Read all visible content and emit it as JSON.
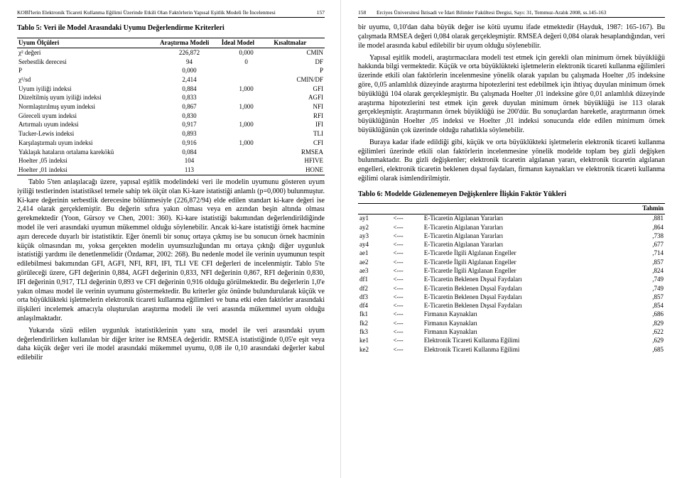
{
  "left": {
    "hdr_title": "KOBİ'lerin Elektronik Ticareti Kullanma Eğilimi Üzerinde Etkili Olan Faktörlerin Yapısal Eşitlik Modeli İle İncelenmesi",
    "hdr_num": "157",
    "table5_title": "Tablo 5: Veri ile Model Arasındaki Uyumu Değerlendirme Kriterleri",
    "t5_head": [
      "Uyum Ölçüleri",
      "Araştırma Modeli",
      "İdeal Model",
      "Kısaltmalar"
    ],
    "t5_rows": [
      [
        "χ² değeri",
        "226,872",
        "0,000",
        "CMIN"
      ],
      [
        "Serbestlik derecesi",
        "94",
        "0",
        "DF"
      ],
      [
        "P",
        "0,000",
        "",
        "P"
      ],
      [
        "χ²/sd",
        "2,414",
        "",
        "CMIN/DF"
      ],
      [
        "Uyum iyiliği indeksi",
        "0,884",
        "1,000",
        "GFI"
      ],
      [
        "Düzeltilmiş uyum iyiliği indeksi",
        "0,833",
        "",
        "AGFI"
      ],
      [
        "Normlaştırılmış uyum indeksi",
        "0,867",
        "1,000",
        "NFI"
      ],
      [
        "Göreceli uyum indeksi",
        "0,830",
        "",
        "RFI"
      ],
      [
        "Artırmalı uyum indeksi",
        "0,917",
        "1,000",
        "IFI"
      ],
      [
        "Tucker-Lewis indeksi",
        "0,893",
        "",
        "TLI"
      ],
      [
        "Karşılaştırmalı uyum indeksi",
        "0,916",
        "1,000",
        "CFI"
      ],
      [
        "Yaklaşık hataların ortalama karekökü",
        "0,084",
        "",
        "RMSEA"
      ],
      [
        "Hoelter ,05 indeksi",
        "104",
        "",
        "HFIVE"
      ],
      [
        "Hoelter ,01 indeksi",
        "113",
        "",
        "HONE"
      ]
    ],
    "p1": "Tablo 5'ten anlaşılacağı üzere, yapısal eşitlik modelindeki veri ile modelin uyumunu gösteren uyum iyiliği testlerinden istatistiksel temele sahip tek ölçüt olan Ki-kare istatistiği anlamlı (p=0,000) bulunmuştur. Ki-kare değerinin serbestlik derecesine bölünmesiyle (226,872/94) elde edilen standart ki-kare değeri ise 2,414 olarak gerçeklemiştir. Bu değerin sıfıra yakın olması veya en azından beşin altında olması gerekmektedir (Yoon, Gürsoy ve Chen, 2001: 360). Ki-kare istatistiği bakımından değerlendirildiğinde model ile veri arasındaki uyumun mükemmel olduğu söylenebilir. Ancak ki-kare istatistiği örnek hacmine aşırı derecede duyarlı bir istatistiktir. Eğer önemli bir sonuç ortaya çıkmış ise bu sonucun örnek hacminin küçük olmasından mı, yoksa gerçekten modelin uyumsuzluğundan mı ortaya çıktığı diğer uygunluk istatistiği yardımı ile denetlenmelidir (Özdamar, 2002: 268). Bu nedenle model ile verinin uyumunun tespit edilebilmesi bakımından GFI, AGFI, NFI, RFI, IFI, TLI VE CFI değerleri de incelenmiştir. Tablo 5'te görüleceği üzere, GFI değerinin 0,884, AGFI değerinin 0,833, NFI değerinin 0,867, RFI değerinin 0,830, IFI değerinin 0,917, TLI değerinin 0,893 ve CFI değerinin 0,916 olduğu görülmektedir. Bu değerlerin 1,0'e yakın olması model ile verinin uyumunu göstermektedir. Bu kriterler göz önünde bulundurularak küçük ve orta büyüklükteki işletmelerin elektronik ticareti kullanma eğilimleri ve buna etki eden faktörler arasındaki ilişkileri incelemek amacıyla oluşturulan araştırma modeli ile veri arasında mükemmel uyum olduğu anlaşılmaktadır.",
    "p2": "Yukarıda sözü edilen uygunluk istatistiklerinin yanı sıra, model ile veri arasındaki uyum değerlendirilirken kullanılan bir diğer kriter ise RMSEA değeridir. RMSEA istatistiğinde 0,05'e eşit veya daha küçük değer veri ile model arasındaki mükemmel uyumu, 0,08 ile 0,10 arasındaki değerler kabul edilebilir"
  },
  "right": {
    "hdr_num": "158",
    "hdr_title": "Erciyes Üniversitesi İktisadi ve İdari Bilimler Fakültesi Dergisi, Sayı: 31, Temmuz-Aralık 2008, ss.145-163",
    "p1": "bir uyumu, 0,10'dan daha büyük değer ise kötü uyumu ifade etmektedir (Hayduk, 1987: 165-167). Bu çalışmada RMSEA değeri 0,084 olarak gerçekleşmiştir. RMSEA değeri 0,084 olarak hesaplandığından, veri ile model arasında kabul edilebilir bir uyum olduğu söylenebilir.",
    "p2": "Yapısal eşitlik modeli, araştırmacılara modeli test etmek için gerekli olan minimum örnek büyüklüğü hakkında bilgi vermektedir. Küçük ve orta büyüklükteki işletmelerin elektronik ticareti kullanma eğilimleri üzerinde etkili olan faktörlerin incelenmesine yönelik olarak yapılan bu çalışmada Hoelter ,05 indeksine göre, 0,05 anlamlılık düzeyinde araştırma hipotezlerini test edebilmek için ihtiyaç duyulan minimum örnek büyüklüğü 104 olarak gerçekleşmiştir. Bu çalışmada Hoelter ,01 indeksine göre 0,01 anlamlılık düzeyinde araştırma hipotezlerini test etmek için gerek duyulan minimum örnek büyüklüğü ise 113 olarak gerçekleşmiştir. Araştırmanın örnek büyüklüğü ise 200'dür. Bu sonuçlardan hareketle, araştırmanın örnek büyüklüğünün Hoelter ,05 indeksi ve Hoelter ,01 indeksi sonucunda elde edilen minimum örnek büyüklüğünün çok üzerinde olduğu rahatlıkla söylenebilir.",
    "p3": "Buraya kadar ifade edildiği gibi, küçük ve orta büyüklükteki işletmelerin elektronik ticareti kullanma eğilimleri üzerinde etkili olan faktörlerin incelenmesine yönelik modelde toplam beş gizli değişken bulunmaktadır. Bu gizli değişkenler; elektronik ticaretin algılanan yararı, elektronik ticaretin algılanan engelleri, elektronik ticaretin beklenen dışsal faydaları, firmanın kaynakları ve elektronik ticareti kullanma eğilimi olarak isimlendirilmiştir.",
    "table6_title": "Tablo 6: Modelde Gözlenemeyen Değişkenlere İlişkin Faktör Yükleri",
    "t6_head": [
      "",
      "",
      "",
      "Tahmin"
    ],
    "t6_rows": [
      [
        "ay1",
        "<---",
        "E-Ticaretin Algılanan Yararları",
        ",881"
      ],
      [
        "ay2",
        "<---",
        "E-Ticaretin Algılanan Yararları",
        ",864"
      ],
      [
        "ay3",
        "<---",
        "E-Ticaretin Algılanan Yararları",
        ",738"
      ],
      [
        "ay4",
        "<---",
        "E-Ticaretin Algılanan Yararları",
        ",677"
      ],
      [
        "ae1",
        "<---",
        "E-Ticaretle İlgili Algılanan Engeller",
        ",714"
      ],
      [
        "ae2",
        "<---",
        "E-Ticaretle İlgili Algılanan Engeller",
        ",857"
      ],
      [
        "ae3",
        "<---",
        "E-Ticaretle İlgili Algılanan Engeller",
        ",824"
      ],
      [
        "df1",
        "<---",
        "E-Ticaretin Beklenen Dışsal Faydaları",
        ",749"
      ],
      [
        "df2",
        "<---",
        "E-Ticaretin Beklenen Dışsal Faydaları",
        ",749"
      ],
      [
        "df3",
        "<---",
        "E-Ticaretin Beklenen Dışsal Faydaları",
        ",857"
      ],
      [
        "df4",
        "<---",
        "E-Ticaretin Beklenen Dışsal Faydaları",
        ",854"
      ],
      [
        "fk1",
        "<---",
        "Firmanın Kaynakları",
        ",686"
      ],
      [
        "fk2",
        "<---",
        "Firmanın Kaynakları",
        ",829"
      ],
      [
        "fk3",
        "<---",
        "Firmanın Kaynakları",
        ",622"
      ],
      [
        "ke1",
        "<---",
        "Elektronik Ticareti Kullanma Eğilimi",
        ",629"
      ],
      [
        "ke2",
        "<---",
        "Elektronik Ticareti Kullanma Eğilimi",
        ",685"
      ]
    ]
  }
}
